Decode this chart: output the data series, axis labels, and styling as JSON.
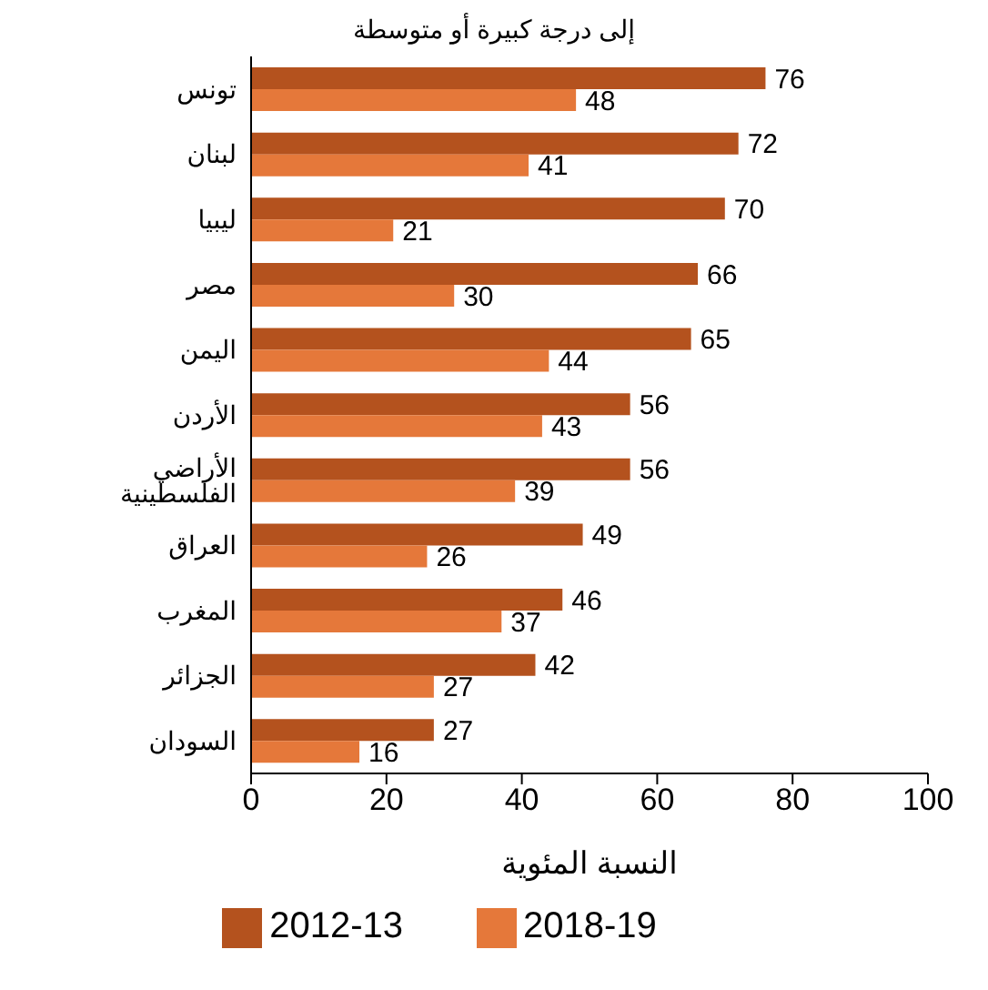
{
  "chart_data": {
    "type": "bar",
    "orientation": "horizontal",
    "title": "إلى درجة كبيرة أو متوسطة",
    "xlabel": "النسبة المئوية",
    "categories": [
      "تونس",
      "لبنان",
      "ليبيا",
      "مصر",
      "اليمن",
      "الأردن",
      "الأراضي الفلسطينية",
      "العراق",
      "المغرب",
      "الجزائر",
      "السودان"
    ],
    "series": [
      {
        "name": "2012-13",
        "color": "#b4521e",
        "values": [
          76,
          72,
          70,
          66,
          65,
          56,
          56,
          49,
          46,
          42,
          27
        ]
      },
      {
        "name": "2018-19",
        "color": "#e5783a",
        "values": [
          48,
          41,
          21,
          30,
          44,
          43,
          39,
          26,
          37,
          27,
          16
        ]
      }
    ],
    "xlim": [
      0,
      100
    ],
    "xticks": [
      0,
      20,
      40,
      60,
      80,
      100
    ],
    "grid": false,
    "legend": "bottom",
    "data_labels": true
  }
}
